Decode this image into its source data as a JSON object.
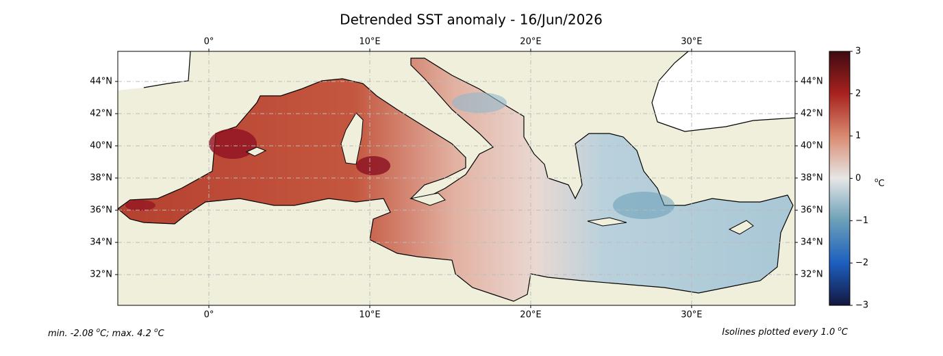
{
  "map": {
    "title": "Detrended SST anomaly - 16/Jun/2026",
    "xlim": [
      -5.66,
      36.43
    ],
    "ylim": [
      30.09,
      45.87
    ],
    "lon_ticks": [
      {
        "value": 0,
        "label": "0°"
      },
      {
        "value": 10,
        "label": "10°E"
      },
      {
        "value": 20,
        "label": "20°E"
      },
      {
        "value": 30,
        "label": "30°E"
      }
    ],
    "lat_ticks": [
      {
        "value": 44,
        "label": "44°N"
      },
      {
        "value": 42,
        "label": "42°N"
      },
      {
        "value": 40,
        "label": "40°N"
      },
      {
        "value": 38,
        "label": "38°N"
      },
      {
        "value": 36,
        "label": "36°N"
      },
      {
        "value": 34,
        "label": "34°N"
      },
      {
        "value": 32,
        "label": "32°N"
      }
    ],
    "colorbar": {
      "lim": [
        -3,
        3
      ],
      "ticks": [
        3,
        2,
        1,
        0,
        {
          "value": -1,
          "label": "−1"
        },
        {
          "value": -2,
          "label": "−2"
        },
        {
          "value": -3,
          "label": "−3"
        }
      ],
      "unit": [
        "o",
        "C"
      ]
    },
    "footer_left": [
      "min. -2.08 ",
      "o",
      "C; max. 4.2 ",
      "o",
      "C"
    ],
    "footer_right": [
      "Isolines plotted every 1.0 ",
      "o",
      "C"
    ]
  }
}
